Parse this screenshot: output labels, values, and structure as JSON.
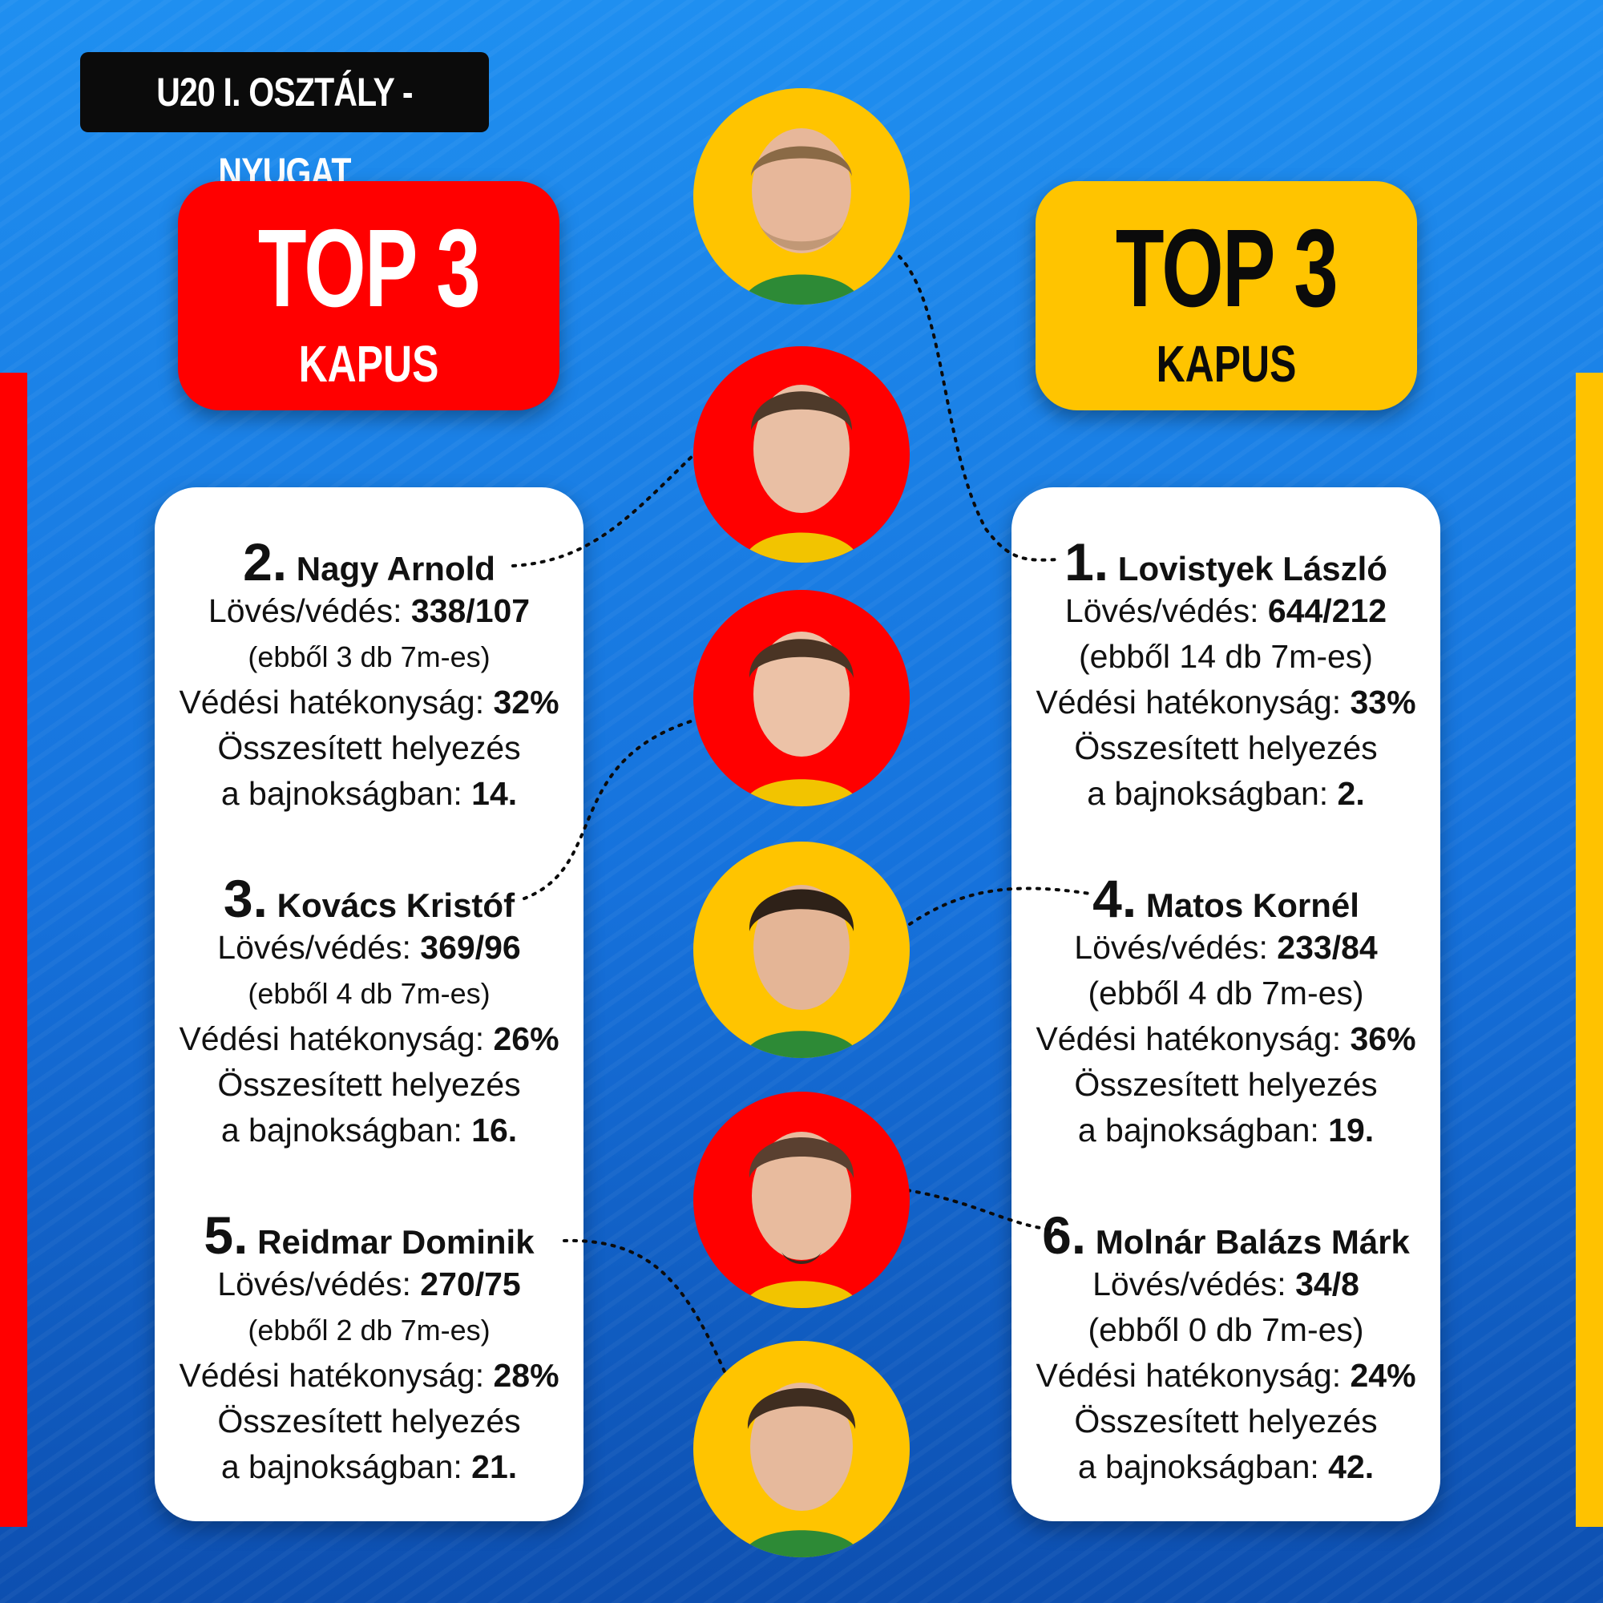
{
  "league": "U20 I. OSZTÁLY - NYUGAT",
  "boxes": {
    "left": {
      "big": "TOP 3",
      "small": "KAPUS",
      "color": "#ff0000"
    },
    "right": {
      "big": "TOP 3",
      "small": "KAPUS",
      "color": "#ffc400"
    }
  },
  "labels": {
    "shots": "Lövés/védés: ",
    "efficiency": "Védési hatékonyság: ",
    "overall1": "Összesített helyezés",
    "overall2": "a bajnokságban: "
  },
  "players": {
    "p2": {
      "rank": "2.",
      "name": "Nagy Arnold",
      "shots": "338/107",
      "penalty": "(ebből 3 db 7m-es)",
      "efficiency": "32%",
      "standing": "14."
    },
    "p3": {
      "rank": "3.",
      "name": "Kovács Kristóf",
      "shots": "369/96",
      "penalty": "(ebből 4 db 7m-es)",
      "efficiency": "26%",
      "standing": "16."
    },
    "p5": {
      "rank": "5.",
      "name": "Reidmar Dominik",
      "shots": "270/75",
      "penalty": "(ebből 2 db 7m-es)",
      "efficiency": "28%",
      "standing": "21."
    },
    "p1": {
      "rank": "1.",
      "name": "Lovistyek László",
      "shots": "644/212",
      "penalty": "(ebből 14 db 7m-es)",
      "efficiency": "33%",
      "standing": "2."
    },
    "p4": {
      "rank": "4.",
      "name": "Matos Kornél",
      "shots": "233/84",
      "penalty": "(ebből 4 db 7m-es)",
      "efficiency": "36%",
      "standing": "19."
    },
    "p6": {
      "rank": "6.",
      "name": "Molnár Balázs Márk",
      "shots": "34/8",
      "penalty": "(ebből 0 db 7m-es)",
      "efficiency": "24%",
      "standing": "42."
    }
  }
}
